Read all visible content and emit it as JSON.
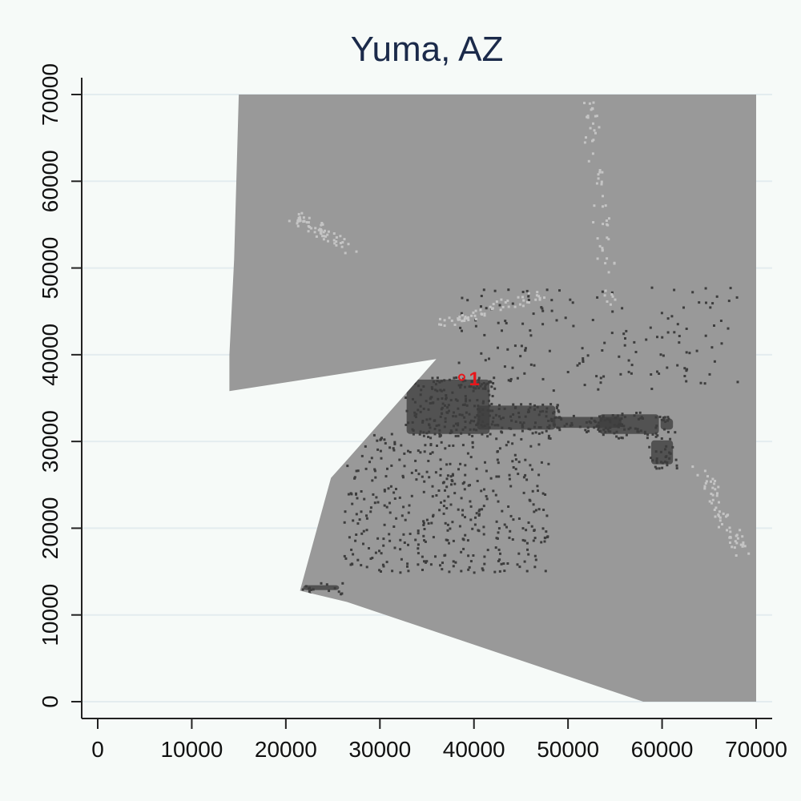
{
  "chart_data": {
    "type": "heatmap",
    "title": "Yuma, AZ",
    "xlabel": "",
    "ylabel": "",
    "xlim": [
      0,
      70000
    ],
    "ylim": [
      0,
      70000
    ],
    "x_ticks": [
      0,
      10000,
      20000,
      30000,
      40000,
      50000,
      60000,
      70000
    ],
    "y_ticks": [
      0,
      10000,
      20000,
      30000,
      40000,
      50000,
      60000,
      70000
    ],
    "x_tick_labels": [
      "0",
      "10000",
      "20000",
      "30000",
      "40000",
      "50000",
      "60000",
      "70000"
    ],
    "y_tick_labels": [
      "0",
      "10000",
      "20000",
      "30000",
      "40000",
      "50000",
      "60000",
      "70000"
    ],
    "grid": "horizontal",
    "legend": "none",
    "colors": {
      "background": "#f6faf8",
      "coverage": "#999999",
      "developed": "#3d3d3d",
      "light_features": "#c4c4c4",
      "marker": "#e8161b",
      "grid": "#e3ecef",
      "title": "#1b2a4a"
    },
    "coverage_region": [
      [
        15000,
        70000
      ],
      [
        70000,
        70000
      ],
      [
        70000,
        0
      ],
      [
        58000,
        0
      ],
      [
        26500,
        11500
      ],
      [
        21500,
        12800
      ],
      [
        24800,
        25800
      ],
      [
        26200,
        27500
      ],
      [
        36000,
        39500
      ],
      [
        14000,
        35800
      ],
      [
        14000,
        40000
      ],
      [
        14500,
        51000
      ],
      [
        15000,
        70000
      ]
    ],
    "developed_clusters": [
      {
        "xmin": 32500,
        "xmax": 42000,
        "ymin": 30500,
        "ymax": 37500
      },
      {
        "xmin": 40000,
        "xmax": 49000,
        "ymin": 31000,
        "ymax": 34500
      },
      {
        "xmin": 48000,
        "xmax": 56000,
        "ymin": 31200,
        "ymax": 33200
      },
      {
        "xmin": 53000,
        "xmax": 60000,
        "ymin": 30500,
        "ymax": 33500
      },
      {
        "xmin": 58500,
        "xmax": 61500,
        "ymin": 27000,
        "ymax": 30500
      },
      {
        "xmin": 59500,
        "xmax": 61500,
        "ymin": 31000,
        "ymax": 33000
      },
      {
        "xmin": 21500,
        "xmax": 26000,
        "ymin": 12500,
        "ymax": 13800
      }
    ],
    "points": [
      {
        "label": "1",
        "x": 38700,
        "y": 37400
      }
    ]
  }
}
